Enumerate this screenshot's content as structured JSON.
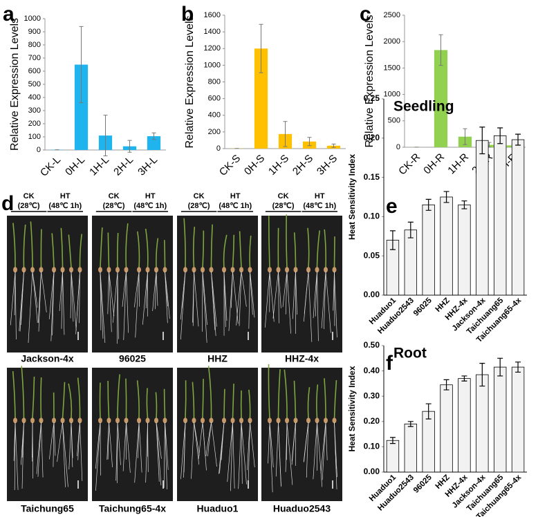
{
  "chart_data": [
    {
      "type": "bar",
      "panel": "a",
      "ylabel": "Relative Expression Levels",
      "categories": [
        "CK-L",
        "0H-L",
        "1H-L",
        "2H-L",
        "3H-L"
      ],
      "values": [
        2,
        650,
        110,
        28,
        105
      ],
      "errors": [
        0,
        290,
        155,
        45,
        25
      ],
      "color": "#1fb4ee",
      "ylim": [
        0,
        1000
      ],
      "yticks": [
        0,
        100,
        200,
        300,
        400,
        500,
        600,
        700,
        800,
        900,
        1000
      ]
    },
    {
      "type": "bar",
      "panel": "b",
      "ylabel": "Relative Expression Levels",
      "categories": [
        "CK-S",
        "0H-S",
        "1H-S",
        "2H-S",
        "3H-S"
      ],
      "values": [
        2,
        1200,
        175,
        85,
        35
      ],
      "errors": [
        0,
        290,
        150,
        50,
        20
      ],
      "color": "#ffc000",
      "ylim": [
        0,
        1600
      ],
      "yticks": [
        0,
        200,
        400,
        600,
        800,
        1000,
        1200,
        1400,
        1600
      ]
    },
    {
      "type": "bar",
      "panel": "c",
      "ylabel": "Relative Expression Levels",
      "categories": [
        "CK-R",
        "0H-R",
        "1H-R",
        "2H-R",
        "3H-R"
      ],
      "values": [
        2,
        1840,
        200,
        45,
        35
      ],
      "errors": [
        0,
        290,
        150,
        45,
        20
      ],
      "color": "#92d050",
      "ylim": [
        0,
        2500
      ],
      "yticks": [
        0,
        500,
        1000,
        1500,
        2000,
        2500
      ]
    },
    {
      "type": "bar",
      "panel": "e",
      "title": "Seedling",
      "ylabel": "Heat Sensitivity Index",
      "categories": [
        "Huaduo1",
        "Huaduo2543",
        "96025",
        "HHZ",
        "HHZ-4x",
        "Jackson-4x",
        "Taichuang65",
        "Taichuang65-4x"
      ],
      "values": [
        0.07,
        0.083,
        0.115,
        0.125,
        0.115,
        0.197,
        0.203,
        0.198
      ],
      "errors": [
        0.012,
        0.01,
        0.007,
        0.007,
        0.005,
        0.017,
        0.01,
        0.007
      ],
      "color": "#f2f2f2",
      "ylim": [
        0,
        0.25
      ],
      "yticks": [
        {
          "value": 0,
          "label": "0.00"
        },
        {
          "value": 0.05,
          "label": "0.05"
        },
        {
          "value": 0.1,
          "label": "0.10"
        },
        {
          "value": 0.15,
          "label": "0.15"
        },
        {
          "value": 0.2,
          "label": "0.20"
        },
        {
          "value": 0.25,
          "label": "0.25"
        }
      ]
    },
    {
      "type": "bar",
      "panel": "f",
      "title": "Root",
      "ylabel": "Heat Sensitivity Index",
      "categories": [
        "Huaduo1",
        "Huaduo2543",
        "96025",
        "HHZ",
        "HHZ-4x",
        "Jackson-4x",
        "Taichuang65",
        "Taichuang65-4x"
      ],
      "values": [
        0.125,
        0.19,
        0.24,
        0.345,
        0.37,
        0.385,
        0.415,
        0.415
      ],
      "errors": [
        0.012,
        0.01,
        0.03,
        0.02,
        0.01,
        0.045,
        0.035,
        0.02
      ],
      "color": "#f2f2f2",
      "ylim": [
        0,
        0.5
      ],
      "yticks": [
        {
          "value": 0,
          "label": "0.00"
        },
        {
          "value": 0.1,
          "label": "0.10"
        },
        {
          "value": 0.2,
          "label": "0.20"
        },
        {
          "value": 0.3,
          "label": "0.30"
        },
        {
          "value": 0.4,
          "label": "0.40"
        },
        {
          "value": 0.5,
          "label": "0.50"
        }
      ]
    }
  ],
  "panel_d": {
    "panel": "d",
    "groups": [
      {
        "name": "CK",
        "condition": "(28℃)"
      },
      {
        "name": "HT",
        "condition": "(48℃ 1h)"
      }
    ],
    "photos": [
      "Jackson-4x",
      "96025",
      "HHZ",
      "HHZ-4x",
      "Taichung65",
      "Taichung65-4x",
      "Huaduo1",
      "Huaduo2543"
    ]
  }
}
